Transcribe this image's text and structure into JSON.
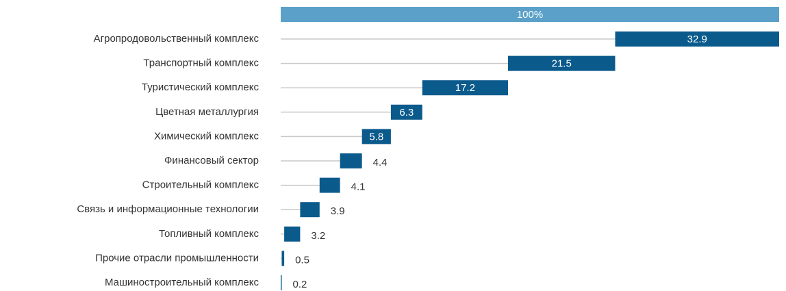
{
  "chart_data": {
    "type": "waterfall",
    "total": {
      "value": 100,
      "label": "100%"
    },
    "total_color": "#5aa0c8",
    "categories": [
      "Агропродовольственный комплекс",
      "Транспортный комплекс",
      "Туристический комплекс",
      "Цветная металлургия",
      "Химический комплекс",
      "Финансовый сектор",
      "Строительный комплекс",
      "Связь и информационные технологии",
      "Топливный комплекс",
      "Прочие отрасли промышленности",
      "Машиностроительный комплекс"
    ],
    "values": [
      32.9,
      21.5,
      17.2,
      6.3,
      5.8,
      4.4,
      4.1,
      3.9,
      3.2,
      0.5,
      0.2
    ],
    "color": "#0b5a8c",
    "xlim": [
      0,
      100
    ]
  }
}
